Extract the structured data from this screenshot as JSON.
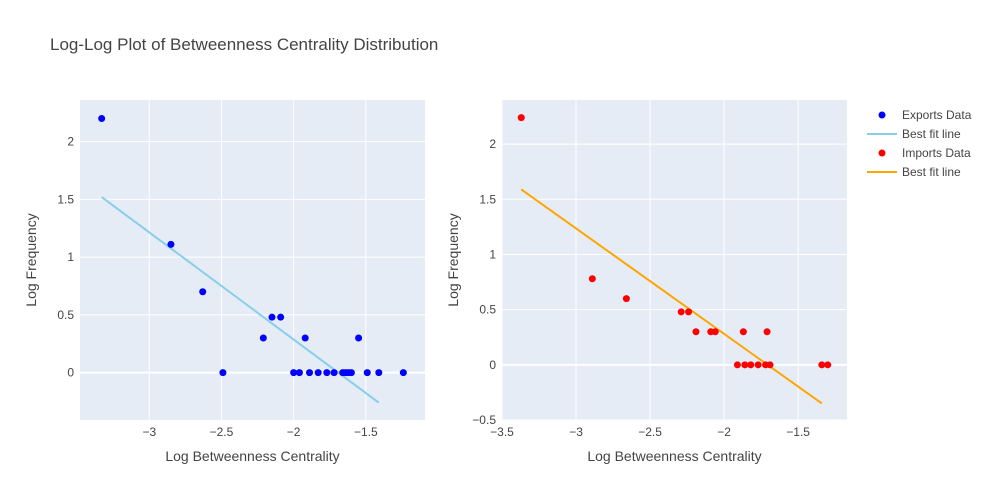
{
  "chart_data": {
    "title": "Log-Log Plot of Betweenness Centrality Distribution",
    "legend_placement": "right",
    "grid": true,
    "plot_background": "#e5ecf6",
    "subplots": [
      {
        "type": "scatter",
        "xlabel": "Log Betweenness Centrality",
        "ylabel": "Log Frequency",
        "xlim": [
          -3.48,
          -1.09
        ],
        "ylim": [
          -0.41,
          2.36
        ],
        "xticks": [
          -3,
          -2.5,
          -2,
          -1.5
        ],
        "xtick_labels": [
          "−3",
          "−2.5",
          "−2",
          "−1.5"
        ],
        "yticks": [
          0,
          0.5,
          1,
          1.5,
          2
        ],
        "ytick_labels": [
          "0",
          "0.5",
          "1",
          "1.5",
          "2"
        ],
        "scatter": {
          "name": "Exports Data",
          "color": "#0000ff",
          "x": [
            -3.33,
            -2.85,
            -2.63,
            -2.49,
            -2.21,
            -2.15,
            -2.09,
            -2.0,
            -1.96,
            -1.92,
            -1.89,
            -1.83,
            -1.77,
            -1.72,
            -1.66,
            -1.64,
            -1.62,
            -1.6,
            -1.55,
            -1.49,
            -1.41,
            -1.24
          ],
          "y": [
            2.2,
            1.11,
            0.7,
            0.0,
            0.3,
            0.48,
            0.48,
            0.0,
            0.0,
            0.3,
            0.0,
            0.0,
            0.0,
            0.0,
            0.0,
            0.0,
            0.0,
            0.0,
            0.3,
            0.0,
            0.0,
            0.0
          ]
        },
        "fit": {
          "name": "Best fit line",
          "color": "#87ceeb",
          "x": [
            -3.33,
            -1.41
          ],
          "y": [
            1.52,
            -0.26
          ]
        }
      },
      {
        "type": "scatter",
        "xlabel": "Log Betweenness Centrality",
        "ylabel": "Log Frequency",
        "xlim": [
          -3.5,
          -1.17
        ],
        "ylim": [
          -0.5,
          2.4
        ],
        "xticks": [
          -3.5,
          -3,
          -2.5,
          -2,
          -1.5
        ],
        "xtick_labels": [
          "−3.5",
          "−3",
          "−2.5",
          "−2",
          "−1.5"
        ],
        "yticks": [
          -0.5,
          0,
          0.5,
          1,
          1.5,
          2
        ],
        "ytick_labels": [
          "−0.5",
          "0",
          "0.5",
          "1",
          "1.5",
          "2"
        ],
        "scatter": {
          "name": "Imports Data",
          "color": "#ff0000",
          "x": [
            -3.37,
            -2.89,
            -2.66,
            -2.29,
            -2.24,
            -2.19,
            -2.09,
            -2.06,
            -1.91,
            -1.87,
            -1.86,
            -1.82,
            -1.77,
            -1.72,
            -1.71,
            -1.69,
            -1.34,
            -1.3
          ],
          "y": [
            2.24,
            0.78,
            0.6,
            0.48,
            0.48,
            0.3,
            0.3,
            0.3,
            0.0,
            0.3,
            0.0,
            0.0,
            0.0,
            0.0,
            0.3,
            0.0,
            0.0,
            0.0
          ]
        },
        "fit": {
          "name": "Best fit line",
          "color": "#ffa500",
          "x": [
            -3.37,
            -1.34
          ],
          "y": [
            1.59,
            -0.35
          ]
        }
      }
    ],
    "legend": [
      {
        "label": "Exports Data",
        "kind": "marker",
        "color": "#0000ff"
      },
      {
        "label": "Best fit line",
        "kind": "line",
        "color": "#87ceeb"
      },
      {
        "label": "Imports Data",
        "kind": "marker",
        "color": "#ff0000"
      },
      {
        "label": "Best fit line",
        "kind": "line",
        "color": "#ffa500"
      }
    ]
  }
}
